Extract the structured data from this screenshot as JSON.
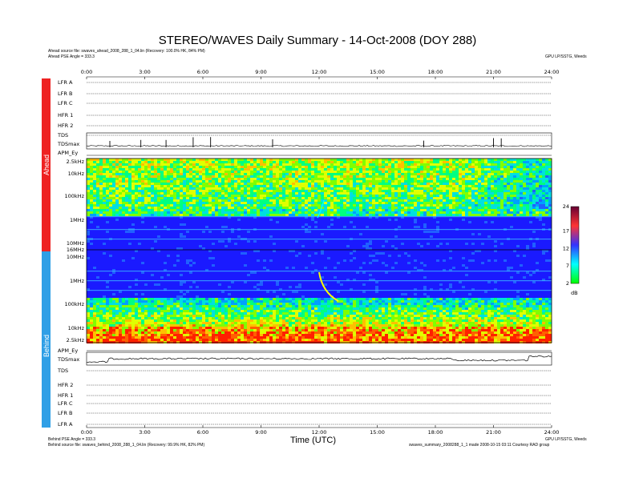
{
  "page": {
    "title": "STEREO/WAVES Daily Summary - 14-Oct-2008 (DOY 288)",
    "ahead_source": "Ahead source file: swaves_ahead_2008_288_1_04.lin (Recovery: 100.0% HK, 84% PM)",
    "ahead_pse": "Ahead PSE Angle = 333.3",
    "behind_pse": "Behind PSE Angle = 333.3",
    "behind_source": "Behind source file: swaves_behind_2008_288_1_04.lin (Recovery: 99.9% HK, 82% PM)",
    "credit": "GPU LP/SSTG, Weeds",
    "footer_right": "swaves_summary_2008288_1_1 made 2008-10-15 03:11 Courtesy RAD group",
    "xlabel": "Time (UTC)"
  },
  "chart_data": {
    "type": "heatmap",
    "x_ticks": [
      "0:00",
      "3:00",
      "6:00",
      "9:00",
      "12:00",
      "15:00",
      "18:00",
      "21:00",
      "24:00"
    ],
    "xlim_hours": [
      0,
      24
    ],
    "side_labels": [
      "Ahead",
      "Behind"
    ],
    "side_colors": {
      "Ahead": "#ee2222",
      "Behind": "#2f9fe6"
    },
    "ahead_rows": [
      "LFR A",
      "LFR B",
      "LFR C",
      "HFR 1",
      "HFR 2",
      "TDS",
      "TDSmax",
      "APM_Ey"
    ],
    "behind_rows": [
      "APM_Ey",
      "TDSmax",
      "TDS",
      "HFR 2",
      "HFR 1",
      "LFR C",
      "LFR B",
      "LFR A"
    ],
    "ahead_freq_ticks": [
      "2.5kHz",
      "10kHz",
      "100kHz",
      "1MHz",
      "10MHz",
      "16MHz"
    ],
    "behind_freq_ticks": [
      "10MHz",
      "1MHz",
      "100kHz",
      "10kHz",
      "2.5kHz"
    ],
    "colorbar": {
      "ticks": [
        2,
        7,
        12,
        17,
        24
      ],
      "unit": "dB",
      "range": [
        2,
        24
      ],
      "colors": [
        "#00ff00",
        "#00ffff",
        "#3333ff",
        "#ff3333",
        "#660033"
      ]
    },
    "ahead_tdsmax_spike_hours": [
      1.2,
      2.8,
      4.1,
      5.5,
      6.4,
      9.6,
      17.4,
      21.0,
      21.4
    ],
    "behind_radio_burst_hour": 12.0
  }
}
